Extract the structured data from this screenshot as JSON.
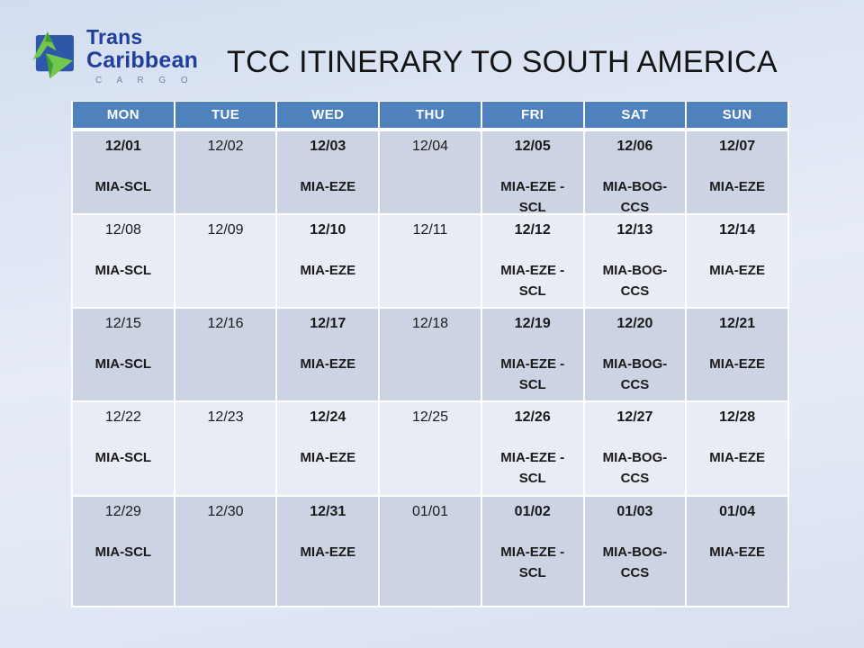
{
  "logo": {
    "line1": "Trans",
    "line2": "Caribbean",
    "cargo": "C A R G O"
  },
  "title": "TCC ITINERARY TO SOUTH AMERICA",
  "colors": {
    "header_bg": "#4f81bd",
    "header_text": "#ffffff",
    "row_band_dark": "#ccd3e3",
    "row_band_light": "#e9ecf4",
    "slide_background": "#dde4f2",
    "logo_square_blue": "#2e56a9",
    "logo_arrow_green": "#72c74f",
    "logo_arrow_green_dark": "#3f9e37",
    "logo_text_navy": "#1f3f9b"
  },
  "table": {
    "columns": [
      "MON",
      "TUE",
      "WED",
      "THU",
      "FRI",
      "SAT",
      "SUN"
    ],
    "rows": [
      [
        {
          "date": "12/01",
          "bold": true,
          "route": "MIA-SCL"
        },
        {
          "date": "12/02",
          "bold": false,
          "route": ""
        },
        {
          "date": "12/03",
          "bold": true,
          "route": "MIA-EZE"
        },
        {
          "date": "12/04",
          "bold": false,
          "route": ""
        },
        {
          "date": "12/05",
          "bold": true,
          "route": "MIA-EZE -\nSCL"
        },
        {
          "date": "12/06",
          "bold": true,
          "route": "MIA-BOG-\nCCS"
        },
        {
          "date": "12/07",
          "bold": true,
          "route": "MIA-EZE"
        }
      ],
      [
        {
          "date": "12/08",
          "bold": false,
          "route": "MIA-SCL"
        },
        {
          "date": "12/09",
          "bold": false,
          "route": ""
        },
        {
          "date": "12/10",
          "bold": true,
          "route": "MIA-EZE"
        },
        {
          "date": "12/11",
          "bold": false,
          "route": ""
        },
        {
          "date": "12/12",
          "bold": true,
          "route": "MIA-EZE -\nSCL"
        },
        {
          "date": "12/13",
          "bold": true,
          "route": "MIA-BOG-\nCCS"
        },
        {
          "date": "12/14",
          "bold": true,
          "route": "MIA-EZE"
        }
      ],
      [
        {
          "date": "12/15",
          "bold": false,
          "route": "MIA-SCL"
        },
        {
          "date": "12/16",
          "bold": false,
          "route": ""
        },
        {
          "date": "12/17",
          "bold": true,
          "route": "MIA-EZE"
        },
        {
          "date": "12/18",
          "bold": false,
          "route": ""
        },
        {
          "date": "12/19",
          "bold": true,
          "route": "MIA-EZE -\nSCL"
        },
        {
          "date": "12/20",
          "bold": true,
          "route": "MIA-BOG-\nCCS"
        },
        {
          "date": "12/21",
          "bold": true,
          "route": "MIA-EZE"
        }
      ],
      [
        {
          "date": "12/22",
          "bold": false,
          "route": "MIA-SCL"
        },
        {
          "date": "12/23",
          "bold": false,
          "route": ""
        },
        {
          "date": "12/24",
          "bold": true,
          "route": "MIA-EZE"
        },
        {
          "date": "12/25",
          "bold": false,
          "route": ""
        },
        {
          "date": "12/26",
          "bold": true,
          "route": "MIA-EZE -\nSCL"
        },
        {
          "date": "12/27",
          "bold": true,
          "route": "MIA-BOG-\nCCS"
        },
        {
          "date": "12/28",
          "bold": true,
          "route": "MIA-EZE"
        }
      ],
      [
        {
          "date": "12/29",
          "bold": false,
          "route": "MIA-SCL"
        },
        {
          "date": "12/30",
          "bold": false,
          "route": ""
        },
        {
          "date": "12/31",
          "bold": true,
          "route": "MIA-EZE"
        },
        {
          "date": "01/01",
          "bold": false,
          "route": ""
        },
        {
          "date": "01/02",
          "bold": true,
          "route": "MIA-EZE -\nSCL"
        },
        {
          "date": "01/03",
          "bold": true,
          "route": "MIA-BOG-\nCCS"
        },
        {
          "date": "01/04",
          "bold": true,
          "route": "MIA-EZE"
        }
      ]
    ]
  }
}
